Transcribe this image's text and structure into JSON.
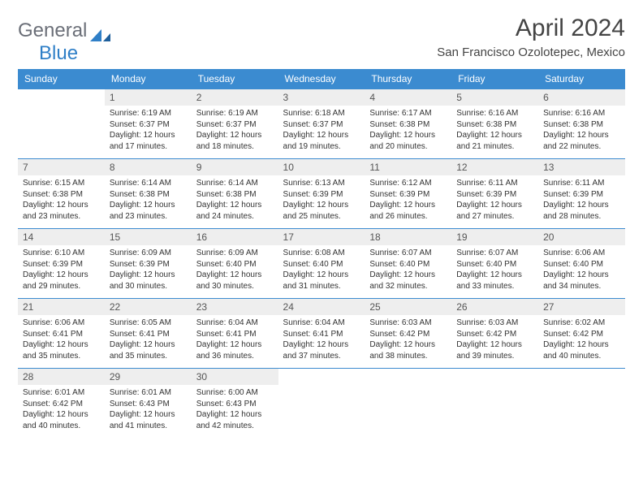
{
  "logo": {
    "part1": "General",
    "part2": "Blue"
  },
  "title": "April 2024",
  "location": "San Francisco Ozolotepec, Mexico",
  "colors": {
    "header_bg": "#3b8bd0",
    "header_text": "#ffffff",
    "daynum_bg": "#eeeeee",
    "border": "#3b8bd0",
    "logo_gray": "#6b6f78",
    "logo_blue": "#2f7fc7",
    "text": "#333333",
    "bg": "#ffffff"
  },
  "day_headers": [
    "Sunday",
    "Monday",
    "Tuesday",
    "Wednesday",
    "Thursday",
    "Friday",
    "Saturday"
  ],
  "weeks": [
    [
      null,
      {
        "n": "1",
        "sr": "6:19 AM",
        "ss": "6:37 PM",
        "dl": "12 hours and 17 minutes."
      },
      {
        "n": "2",
        "sr": "6:19 AM",
        "ss": "6:37 PM",
        "dl": "12 hours and 18 minutes."
      },
      {
        "n": "3",
        "sr": "6:18 AM",
        "ss": "6:37 PM",
        "dl": "12 hours and 19 minutes."
      },
      {
        "n": "4",
        "sr": "6:17 AM",
        "ss": "6:38 PM",
        "dl": "12 hours and 20 minutes."
      },
      {
        "n": "5",
        "sr": "6:16 AM",
        "ss": "6:38 PM",
        "dl": "12 hours and 21 minutes."
      },
      {
        "n": "6",
        "sr": "6:16 AM",
        "ss": "6:38 PM",
        "dl": "12 hours and 22 minutes."
      }
    ],
    [
      {
        "n": "7",
        "sr": "6:15 AM",
        "ss": "6:38 PM",
        "dl": "12 hours and 23 minutes."
      },
      {
        "n": "8",
        "sr": "6:14 AM",
        "ss": "6:38 PM",
        "dl": "12 hours and 23 minutes."
      },
      {
        "n": "9",
        "sr": "6:14 AM",
        "ss": "6:38 PM",
        "dl": "12 hours and 24 minutes."
      },
      {
        "n": "10",
        "sr": "6:13 AM",
        "ss": "6:39 PM",
        "dl": "12 hours and 25 minutes."
      },
      {
        "n": "11",
        "sr": "6:12 AM",
        "ss": "6:39 PM",
        "dl": "12 hours and 26 minutes."
      },
      {
        "n": "12",
        "sr": "6:11 AM",
        "ss": "6:39 PM",
        "dl": "12 hours and 27 minutes."
      },
      {
        "n": "13",
        "sr": "6:11 AM",
        "ss": "6:39 PM",
        "dl": "12 hours and 28 minutes."
      }
    ],
    [
      {
        "n": "14",
        "sr": "6:10 AM",
        "ss": "6:39 PM",
        "dl": "12 hours and 29 minutes."
      },
      {
        "n": "15",
        "sr": "6:09 AM",
        "ss": "6:39 PM",
        "dl": "12 hours and 30 minutes."
      },
      {
        "n": "16",
        "sr": "6:09 AM",
        "ss": "6:40 PM",
        "dl": "12 hours and 30 minutes."
      },
      {
        "n": "17",
        "sr": "6:08 AM",
        "ss": "6:40 PM",
        "dl": "12 hours and 31 minutes."
      },
      {
        "n": "18",
        "sr": "6:07 AM",
        "ss": "6:40 PM",
        "dl": "12 hours and 32 minutes."
      },
      {
        "n": "19",
        "sr": "6:07 AM",
        "ss": "6:40 PM",
        "dl": "12 hours and 33 minutes."
      },
      {
        "n": "20",
        "sr": "6:06 AM",
        "ss": "6:40 PM",
        "dl": "12 hours and 34 minutes."
      }
    ],
    [
      {
        "n": "21",
        "sr": "6:06 AM",
        "ss": "6:41 PM",
        "dl": "12 hours and 35 minutes."
      },
      {
        "n": "22",
        "sr": "6:05 AM",
        "ss": "6:41 PM",
        "dl": "12 hours and 35 minutes."
      },
      {
        "n": "23",
        "sr": "6:04 AM",
        "ss": "6:41 PM",
        "dl": "12 hours and 36 minutes."
      },
      {
        "n": "24",
        "sr": "6:04 AM",
        "ss": "6:41 PM",
        "dl": "12 hours and 37 minutes."
      },
      {
        "n": "25",
        "sr": "6:03 AM",
        "ss": "6:42 PM",
        "dl": "12 hours and 38 minutes."
      },
      {
        "n": "26",
        "sr": "6:03 AM",
        "ss": "6:42 PM",
        "dl": "12 hours and 39 minutes."
      },
      {
        "n": "27",
        "sr": "6:02 AM",
        "ss": "6:42 PM",
        "dl": "12 hours and 40 minutes."
      }
    ],
    [
      {
        "n": "28",
        "sr": "6:01 AM",
        "ss": "6:42 PM",
        "dl": "12 hours and 40 minutes."
      },
      {
        "n": "29",
        "sr": "6:01 AM",
        "ss": "6:43 PM",
        "dl": "12 hours and 41 minutes."
      },
      {
        "n": "30",
        "sr": "6:00 AM",
        "ss": "6:43 PM",
        "dl": "12 hours and 42 minutes."
      },
      null,
      null,
      null,
      null
    ]
  ],
  "labels": {
    "sunrise": "Sunrise:",
    "sunset": "Sunset:",
    "daylight": "Daylight:"
  }
}
